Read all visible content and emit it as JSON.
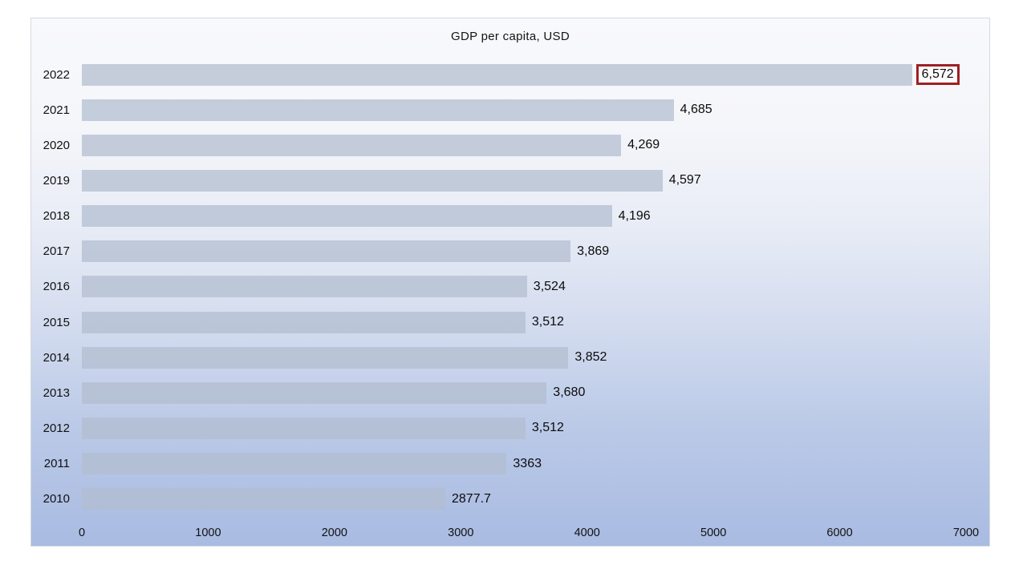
{
  "chart_data": {
    "type": "bar",
    "orientation": "horizontal",
    "title": "GDP per capita, USD",
    "categories": [
      "2022",
      "2021",
      "2020",
      "2019",
      "2018",
      "2017",
      "2016",
      "2015",
      "2014",
      "2013",
      "2012",
      "2011",
      "2010"
    ],
    "values": [
      6572,
      4685,
      4269,
      4597,
      4196,
      3869,
      3524,
      3512,
      3852,
      3680,
      3512,
      3363,
      2877.7
    ],
    "value_labels": [
      "6,572",
      "4,685",
      "4,269",
      "4,597",
      "4,196",
      "3,869",
      "3,524",
      "3,512",
      "3,852",
      "3,680",
      "3,512",
      "3363",
      "2877.7"
    ],
    "highlighted_category": "2022",
    "x_ticks": [
      0,
      1000,
      2000,
      3000,
      4000,
      5000,
      6000,
      7000
    ],
    "x_tick_labels": [
      "0",
      "1000",
      "2000",
      "3000",
      "4000",
      "5000",
      "6000",
      "7000"
    ],
    "xlim": [
      0,
      7000
    ],
    "grid": false,
    "legend": false,
    "xlabel": "",
    "ylabel": "",
    "colors": {
      "bar": "#c5cedb",
      "highlight_box_border": "#9e2023",
      "background_top": "#f8f9fc",
      "background_bottom": "#a9bbe2",
      "text": "#111111"
    }
  }
}
